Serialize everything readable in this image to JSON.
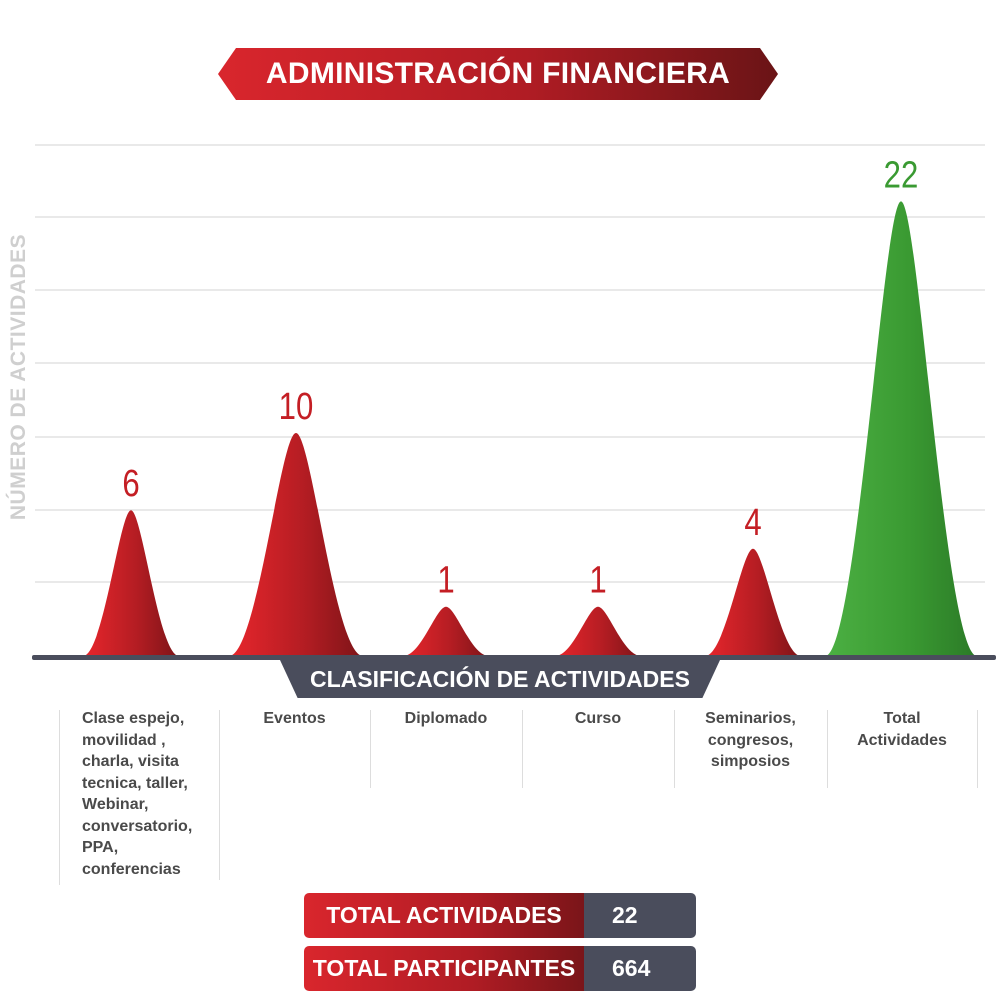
{
  "chart_data": {
    "type": "area",
    "title": "ADMINISTRACIÓN FINANCIERA",
    "xlabel": "CLASIFICACIÓN DE ACTIVIDADES",
    "ylabel": "NÚMERO DE ACTIVIDADES",
    "ylim": [
      0,
      27
    ],
    "grid": true,
    "categories": [
      "Clase espejo, movilidad , charla, visita tecnica, taller, Webinar, conversatorio, PPA, conferencias",
      "Eventos",
      "Diplomado",
      "Curso",
      "Seminarios, congresos, simposios",
      "Total Actividades"
    ],
    "category_lines": [
      [
        "Clase espejo,",
        "movilidad ,",
        "charla, visita",
        "tecnica, taller,",
        "Webinar,",
        "conversatorio,",
        "PPA,",
        "conferencias"
      ],
      [
        "Eventos"
      ],
      [
        "Diplomado"
      ],
      [
        "Curso"
      ],
      [
        "Seminarios,",
        "congresos,",
        "simposios"
      ],
      [
        "Total",
        "Actividades"
      ]
    ],
    "values": [
      6,
      10,
      1,
      1,
      4,
      22
    ],
    "colors": [
      "#c41e24",
      "#c41e24",
      "#c41e24",
      "#c41e24",
      "#c41e24",
      "#3a9a32"
    ]
  },
  "summary": {
    "total_actividades_label": "TOTAL ACTIVIDADES",
    "total_actividades_value": "22",
    "total_participantes_label": "TOTAL PARTICIPANTES",
    "total_participantes_value": "664"
  }
}
